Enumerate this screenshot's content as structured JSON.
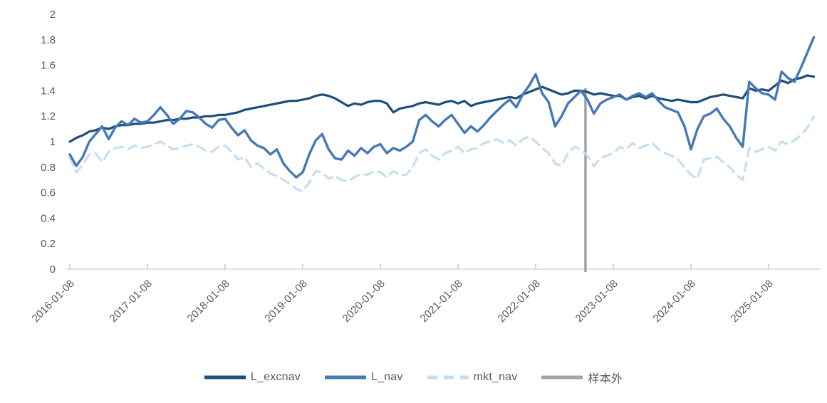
{
  "chart_data": {
    "type": "line",
    "title": "",
    "xlabel": "",
    "ylabel": "",
    "grid": false,
    "legend_position": "bottom",
    "x_start": "2016-01-08",
    "x_step": "month",
    "ylim": [
      0,
      2
    ],
    "yticks": [
      0,
      0.2,
      0.4,
      0.6,
      0.8,
      1,
      1.2,
      1.4,
      1.6,
      1.8,
      2
    ],
    "ytick_labels": [
      "0",
      "0.2",
      "0.4",
      "0.6",
      "0.8",
      "1",
      "1.2",
      "1.4",
      "1.6",
      "1.8",
      "2"
    ],
    "xticks": [
      {
        "label": "2016-01-08",
        "month": 0
      },
      {
        "label": "2017-01-08",
        "month": 12
      },
      {
        "label": "2018-01-08",
        "month": 24
      },
      {
        "label": "2019-01-08",
        "month": 36
      },
      {
        "label": "2020-01-08",
        "month": 48
      },
      {
        "label": "2021-01-08",
        "month": 60
      },
      {
        "label": "2022-01-08",
        "month": 72
      },
      {
        "label": "2023-01-08",
        "month": 84
      },
      {
        "label": "2024-01-08",
        "month": 96
      },
      {
        "label": "2025-01-08",
        "month": 108
      }
    ],
    "series": [
      {
        "name": "L_excnav",
        "color": "#1F4E79",
        "dash": "",
        "width": 3.2,
        "values": [
          1.0,
          1.03,
          1.05,
          1.08,
          1.09,
          1.11,
          1.1,
          1.12,
          1.13,
          1.13,
          1.14,
          1.14,
          1.15,
          1.15,
          1.16,
          1.17,
          1.17,
          1.18,
          1.18,
          1.19,
          1.19,
          1.2,
          1.2,
          1.21,
          1.21,
          1.22,
          1.23,
          1.25,
          1.26,
          1.27,
          1.28,
          1.29,
          1.3,
          1.31,
          1.32,
          1.32,
          1.33,
          1.34,
          1.36,
          1.37,
          1.36,
          1.34,
          1.31,
          1.28,
          1.3,
          1.29,
          1.31,
          1.32,
          1.32,
          1.3,
          1.23,
          1.26,
          1.27,
          1.28,
          1.3,
          1.31,
          1.3,
          1.29,
          1.31,
          1.32,
          1.3,
          1.32,
          1.28,
          1.3,
          1.31,
          1.32,
          1.33,
          1.34,
          1.35,
          1.34,
          1.37,
          1.39,
          1.41,
          1.43,
          1.41,
          1.39,
          1.37,
          1.38,
          1.4,
          1.4,
          1.39,
          1.37,
          1.38,
          1.37,
          1.36,
          1.36,
          1.33,
          1.35,
          1.36,
          1.34,
          1.36,
          1.34,
          1.33,
          1.32,
          1.33,
          1.32,
          1.31,
          1.31,
          1.33,
          1.35,
          1.36,
          1.37,
          1.36,
          1.35,
          1.34,
          1.42,
          1.4,
          1.41,
          1.4,
          1.44,
          1.48,
          1.46,
          1.49,
          1.5,
          1.52,
          1.51
        ]
      },
      {
        "name": "L_nav",
        "color": "#4579B5",
        "dash": "",
        "width": 3.4,
        "values": [
          0.9,
          0.81,
          0.88,
          1.0,
          1.06,
          1.12,
          1.02,
          1.11,
          1.16,
          1.13,
          1.18,
          1.15,
          1.16,
          1.21,
          1.27,
          1.21,
          1.14,
          1.18,
          1.24,
          1.23,
          1.19,
          1.14,
          1.11,
          1.17,
          1.18,
          1.11,
          1.05,
          1.09,
          1.01,
          0.97,
          0.95,
          0.9,
          0.94,
          0.83,
          0.77,
          0.72,
          0.76,
          0.9,
          1.01,
          1.06,
          0.94,
          0.87,
          0.86,
          0.93,
          0.89,
          0.95,
          0.91,
          0.96,
          0.98,
          0.91,
          0.95,
          0.93,
          0.96,
          1.0,
          1.17,
          1.21,
          1.16,
          1.12,
          1.17,
          1.21,
          1.14,
          1.07,
          1.12,
          1.08,
          1.13,
          1.19,
          1.24,
          1.29,
          1.33,
          1.27,
          1.37,
          1.44,
          1.53,
          1.38,
          1.31,
          1.12,
          1.2,
          1.3,
          1.35,
          1.4,
          1.33,
          1.22,
          1.3,
          1.33,
          1.35,
          1.37,
          1.33,
          1.36,
          1.38,
          1.35,
          1.38,
          1.32,
          1.27,
          1.25,
          1.23,
          1.12,
          0.94,
          1.1,
          1.2,
          1.22,
          1.26,
          1.18,
          1.12,
          1.03,
          0.96,
          1.47,
          1.42,
          1.38,
          1.37,
          1.33,
          1.55,
          1.5,
          1.47,
          1.58,
          1.7,
          1.82
        ]
      },
      {
        "name": "mkt_nav",
        "color": "#C5DDF0",
        "dash": "13 8",
        "width": 3.1,
        "values": [
          0.88,
          0.76,
          0.82,
          0.9,
          0.91,
          0.84,
          0.92,
          0.95,
          0.96,
          0.94,
          0.97,
          0.95,
          0.96,
          0.98,
          1.0,
          0.97,
          0.94,
          0.95,
          0.97,
          0.98,
          0.96,
          0.93,
          0.92,
          0.96,
          0.97,
          0.92,
          0.86,
          0.88,
          0.8,
          0.83,
          0.79,
          0.75,
          0.73,
          0.7,
          0.67,
          0.63,
          0.61,
          0.68,
          0.77,
          0.76,
          0.71,
          0.73,
          0.7,
          0.69,
          0.72,
          0.75,
          0.74,
          0.77,
          0.76,
          0.72,
          0.77,
          0.74,
          0.74,
          0.8,
          0.91,
          0.94,
          0.89,
          0.86,
          0.91,
          0.93,
          0.96,
          0.91,
          0.94,
          0.95,
          0.99,
          1.0,
          1.02,
          0.99,
          1.01,
          0.97,
          1.02,
          1.04,
          1.0,
          0.95,
          0.91,
          0.83,
          0.81,
          0.91,
          0.96,
          0.94,
          0.89,
          0.81,
          0.87,
          0.89,
          0.91,
          0.96,
          0.94,
          0.99,
          0.95,
          0.97,
          0.99,
          0.94,
          0.91,
          0.89,
          0.86,
          0.8,
          0.74,
          0.71,
          0.86,
          0.87,
          0.88,
          0.84,
          0.8,
          0.74,
          0.7,
          0.95,
          0.92,
          0.94,
          0.96,
          0.93,
          1.0,
          0.98,
          1.01,
          1.05,
          1.11,
          1.2
        ]
      }
    ],
    "vline": {
      "label": "样本外",
      "color": "#A3A3A3",
      "month_index": 79.7,
      "top_value": 1.42,
      "width": 3.5
    }
  },
  "legend": {
    "items": [
      {
        "label": "L_excnav"
      },
      {
        "label": "L_nav"
      },
      {
        "label": "mkt_nav"
      },
      {
        "label": "样本外"
      }
    ]
  },
  "axis": {
    "text_color": "#595959",
    "line_color": "#D9D9D9",
    "tick_font_size": 15
  }
}
